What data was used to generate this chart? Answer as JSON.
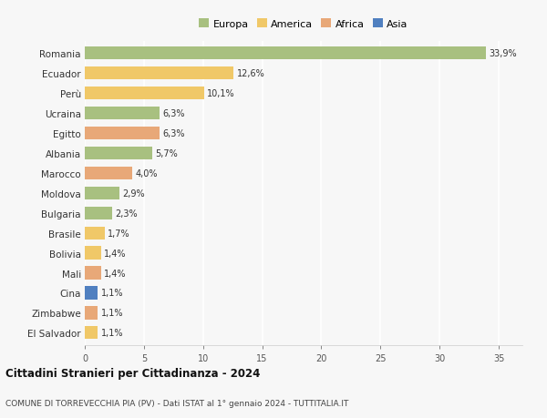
{
  "countries": [
    "Romania",
    "Ecuador",
    "Perù",
    "Ucraina",
    "Egitto",
    "Albania",
    "Marocco",
    "Moldova",
    "Bulgaria",
    "Brasile",
    "Bolivia",
    "Mali",
    "Cina",
    "Zimbabwe",
    "El Salvador"
  ],
  "values": [
    33.9,
    12.6,
    10.1,
    6.3,
    6.3,
    5.7,
    4.0,
    2.9,
    2.3,
    1.7,
    1.4,
    1.4,
    1.1,
    1.1,
    1.1
  ],
  "labels": [
    "33,9%",
    "12,6%",
    "10,1%",
    "6,3%",
    "6,3%",
    "5,7%",
    "4,0%",
    "2,9%",
    "2,3%",
    "1,7%",
    "1,4%",
    "1,4%",
    "1,1%",
    "1,1%",
    "1,1%"
  ],
  "continents": [
    "Europa",
    "America",
    "America",
    "Europa",
    "Africa",
    "Europa",
    "Africa",
    "Europa",
    "Europa",
    "America",
    "America",
    "Africa",
    "Asia",
    "Africa",
    "America"
  ],
  "continent_colors": {
    "Europa": "#a8c080",
    "America": "#f0c868",
    "Africa": "#e8a878",
    "Asia": "#5080c0"
  },
  "legend_items": [
    "Europa",
    "America",
    "Africa",
    "Asia"
  ],
  "title1": "Cittadini Stranieri per Cittadinanza - 2024",
  "title2": "COMUNE DI TORREVECCHIA PIA (PV) - Dati ISTAT al 1° gennaio 2024 - TUTTITALIA.IT",
  "xlim": [
    0,
    37
  ],
  "xticks": [
    0,
    5,
    10,
    15,
    20,
    25,
    30,
    35
  ],
  "bg_color": "#f7f7f7",
  "grid_color": "#ffffff",
  "bar_height": 0.65
}
